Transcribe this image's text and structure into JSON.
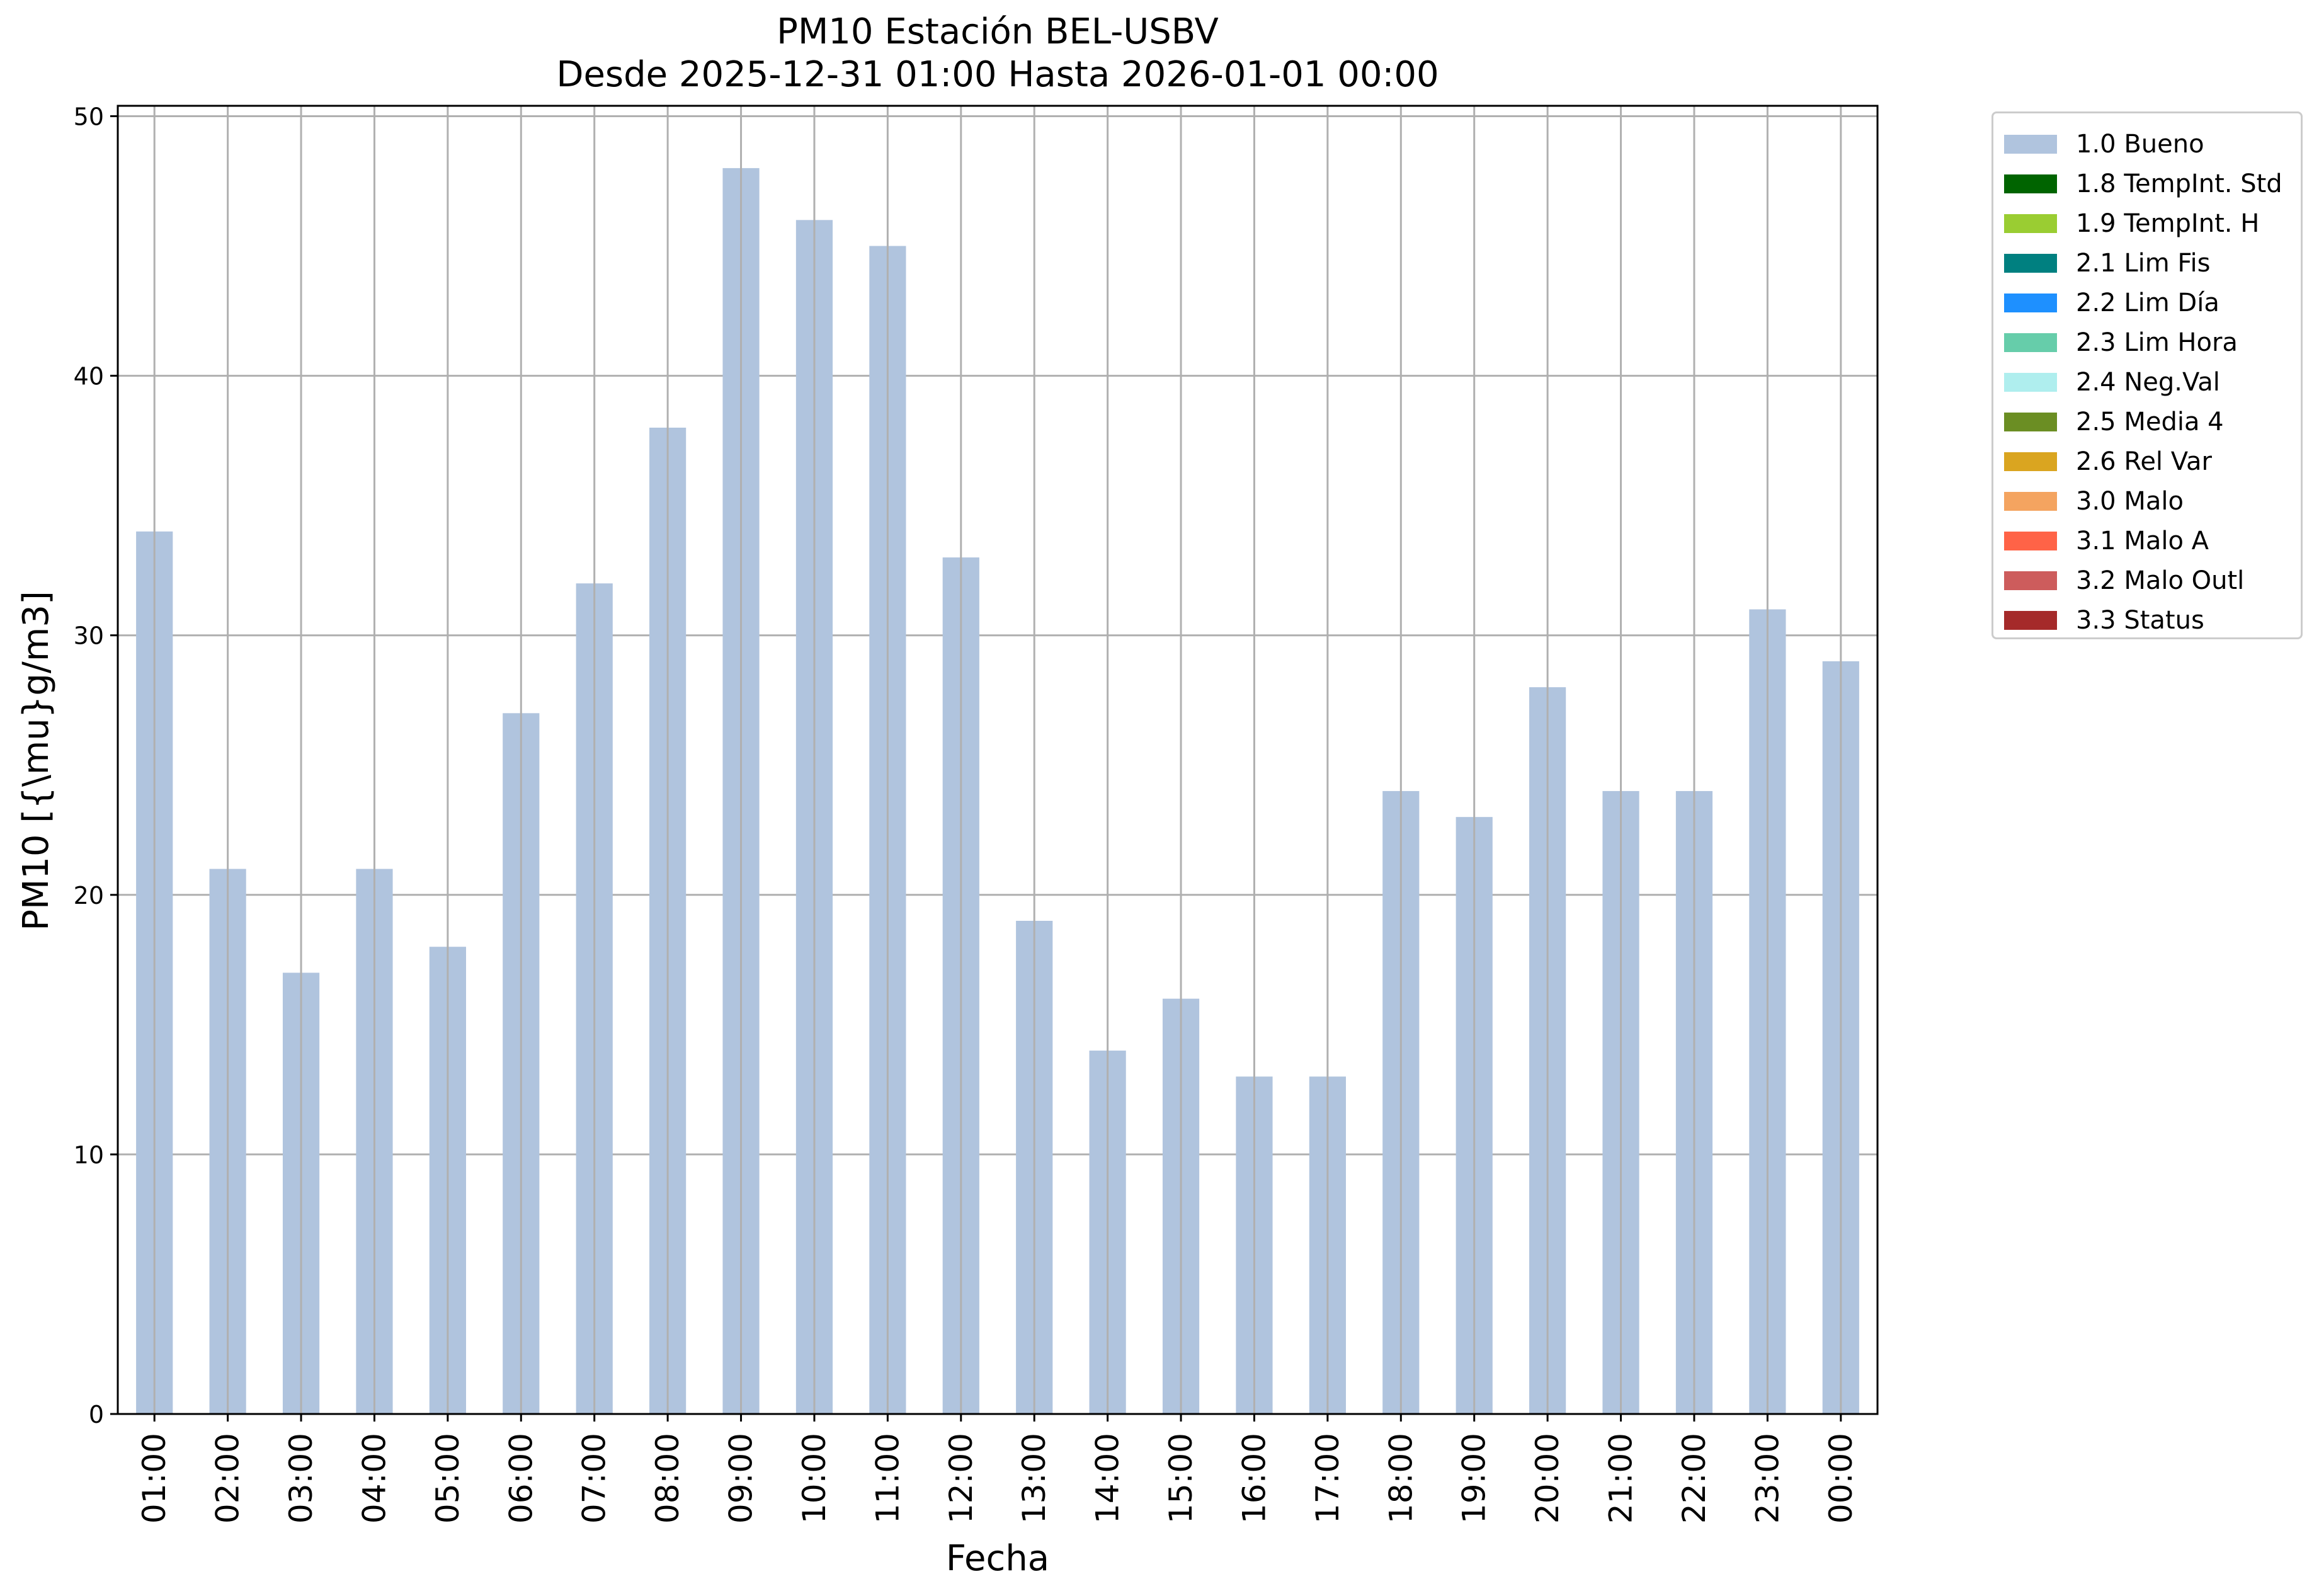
{
  "chart_data": {
    "type": "bar",
    "title": "PM10 Estación BEL-USBV",
    "subtitle": "Desde 2025-12-31 01:00 Hasta 2026-01-01 00:00",
    "xlabel": "Fecha",
    "ylabel": "PM10 [{\\mu}g/m3]",
    "categories": [
      "01:00",
      "02:00",
      "03:00",
      "04:00",
      "05:00",
      "06:00",
      "07:00",
      "08:00",
      "09:00",
      "10:00",
      "11:00",
      "12:00",
      "13:00",
      "14:00",
      "15:00",
      "16:00",
      "17:00",
      "18:00",
      "19:00",
      "20:00",
      "21:00",
      "22:00",
      "23:00",
      "00:00"
    ],
    "values": [
      34,
      21,
      17,
      21,
      18,
      27,
      32,
      38,
      48,
      46,
      45,
      33,
      19,
      14,
      16,
      13,
      13,
      24,
      23,
      28,
      24,
      24,
      31,
      29
    ],
    "series": [
      {
        "name": "1.0 Bueno",
        "values": [
          34,
          21,
          17,
          21,
          18,
          27,
          32,
          38,
          48,
          46,
          45,
          33,
          19,
          14,
          16,
          13,
          13,
          24,
          23,
          28,
          24,
          24,
          31,
          29
        ]
      }
    ],
    "ylim": [
      0,
      50.4
    ],
    "yticks": [
      0,
      10,
      20,
      30,
      40,
      50
    ],
    "grid": true,
    "bar_color": "#b0c4de",
    "legend_position": "outside-right",
    "legend": [
      {
        "label": "1.0 Bueno",
        "color": "#b0c4de"
      },
      {
        "label": "1.8 TempInt. Std",
        "color": "#006400"
      },
      {
        "label": "1.9 TempInt. H",
        "color": "#9acd32"
      },
      {
        "label": "2.1 Lim Fis",
        "color": "#008080"
      },
      {
        "label": "2.2 Lim Día",
        "color": "#1e90ff"
      },
      {
        "label": "2.3 Lim Hora",
        "color": "#66cdaa"
      },
      {
        "label": "2.4 Neg.Val",
        "color": "#afeeee"
      },
      {
        "label": "2.5 Media 4",
        "color": "#6b8e23"
      },
      {
        "label": "2.6 Rel Var",
        "color": "#daa520"
      },
      {
        "label": "3.0 Malo",
        "color": "#f4a460"
      },
      {
        "label": "3.1 Malo A",
        "color": "#ff6347"
      },
      {
        "label": "3.2 Malo Outl",
        "color": "#cd5c5c"
      },
      {
        "label": "3.3 Status",
        "color": "#a52a2a"
      }
    ]
  }
}
